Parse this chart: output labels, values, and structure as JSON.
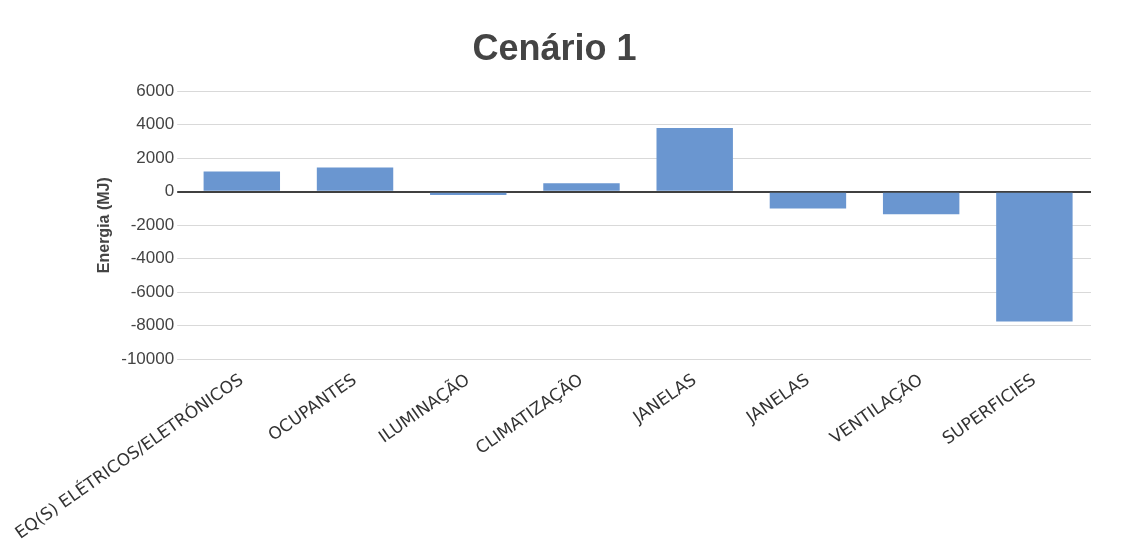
{
  "chart_data": {
    "type": "bar",
    "title": "Cenário 1",
    "ylabel": "Energia (MJ)",
    "categories": [
      "EQ(S) ELÉTRICOS/ELETRÓNICOS",
      "OCUPANTES",
      "ILUMINAÇÃO",
      "CLIMATIZAÇÃO",
      "JANELAS",
      "JANELAS",
      "VENTILAÇÃO",
      "SUPERFICIES"
    ],
    "values": [
      1200,
      1450,
      -200,
      500,
      3800,
      -1000,
      -1350,
      -7750
    ],
    "color": "#6a96d0",
    "ylim": [
      -10000,
      6000
    ],
    "yticks": [
      -10000,
      -8000,
      -6000,
      -4000,
      -2000,
      0,
      2000,
      4000,
      6000
    ],
    "grid": "y",
    "legend": false
  }
}
